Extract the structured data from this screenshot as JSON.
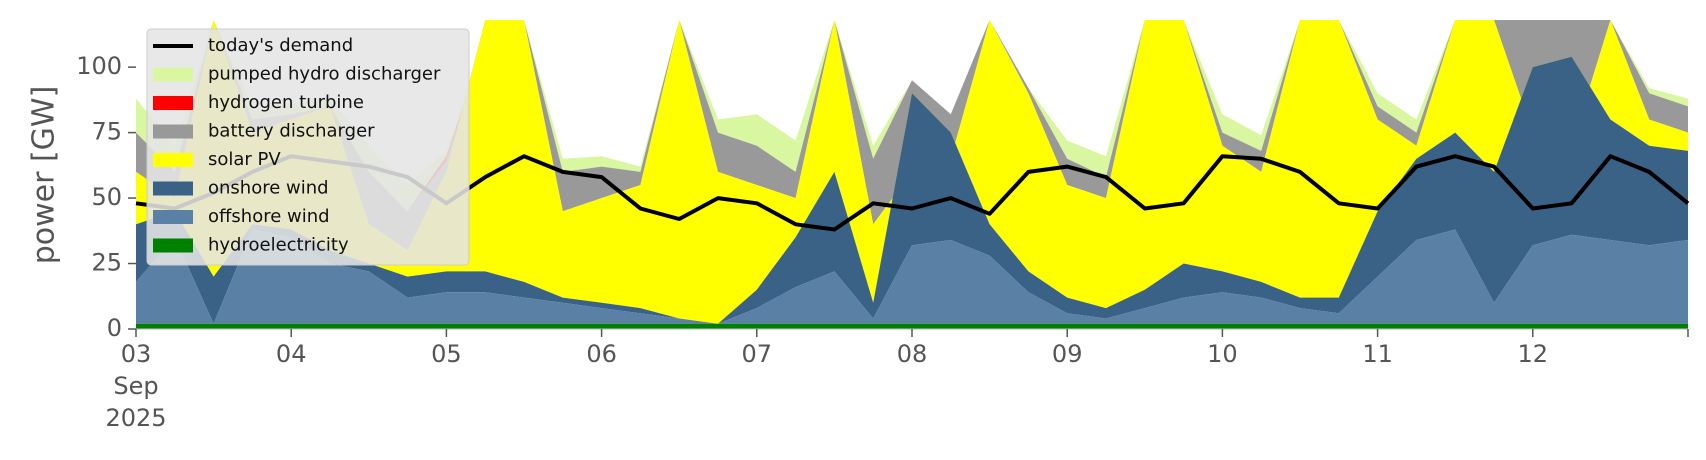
{
  "chart_data": {
    "type": "area",
    "ylabel": "power [GW]",
    "ylim": [
      0,
      118
    ],
    "xlim": [
      0,
      10
    ],
    "grid": false,
    "legend_position": "top-left",
    "y_ticks": [
      0,
      25,
      50,
      75,
      100
    ],
    "x_ticks": [
      {
        "day": 0,
        "label": "03",
        "sub": [
          "Sep",
          "2025"
        ]
      },
      {
        "day": 1,
        "label": "04",
        "sub": []
      },
      {
        "day": 2,
        "label": "05",
        "sub": []
      },
      {
        "day": 3,
        "label": "06",
        "sub": []
      },
      {
        "day": 4,
        "label": "07",
        "sub": []
      },
      {
        "day": 5,
        "label": "08",
        "sub": []
      },
      {
        "day": 6,
        "label": "09",
        "sub": []
      },
      {
        "day": 7,
        "label": "10",
        "sub": []
      },
      {
        "day": 8,
        "label": "11",
        "sub": []
      },
      {
        "day": 9,
        "label": "12",
        "sub": []
      }
    ],
    "x_values": [
      0,
      0.25,
      0.5,
      0.75,
      1,
      1.25,
      1.5,
      1.75,
      2,
      2.25,
      2.5,
      2.75,
      3,
      3.25,
      3.5,
      3.75,
      4,
      4.25,
      4.5,
      4.75,
      5,
      5.25,
      5.5,
      5.75,
      6,
      6.25,
      6.5,
      6.75,
      7,
      7.25,
      7.5,
      7.75,
      8,
      8.25,
      8.5,
      8.75,
      9,
      9.25,
      9.5,
      9.75,
      10
    ],
    "series": [
      {
        "name": "hydroelectricity",
        "color": "#008000",
        "values": [
          2,
          2,
          2,
          2,
          2,
          2,
          2,
          2,
          2,
          2,
          2,
          2,
          2,
          2,
          2,
          2,
          2,
          2,
          2,
          2,
          2,
          2,
          2,
          2,
          2,
          2,
          2,
          2,
          2,
          2,
          2,
          2,
          2,
          2,
          2,
          2,
          2,
          2,
          2,
          2,
          2
        ]
      },
      {
        "name": "offshore wind",
        "color": "#5b80a5",
        "values": [
          18,
          35,
          2,
          38,
          35,
          25,
          22,
          12,
          14,
          14,
          12,
          10,
          8,
          6,
          4,
          2,
          8,
          16,
          22,
          4,
          32,
          34,
          28,
          14,
          6,
          4,
          8,
          12,
          14,
          12,
          8,
          6,
          20,
          34,
          38,
          10,
          32,
          36,
          34,
          32,
          34
        ]
      },
      {
        "name": "onshore wind",
        "color": "#3a6286",
        "values": [
          40,
          45,
          20,
          40,
          38,
          30,
          25,
          20,
          22,
          22,
          18,
          12,
          10,
          8,
          4,
          2,
          15,
          35,
          60,
          10,
          90,
          75,
          40,
          22,
          12,
          8,
          15,
          25,
          22,
          18,
          12,
          12,
          45,
          65,
          75,
          60,
          100,
          104,
          80,
          70,
          68
        ]
      },
      {
        "name": "solar PV",
        "color": "#ffff00",
        "values": [
          60,
          50,
          118,
          75,
          80,
          85,
          40,
          30,
          60,
          118,
          118,
          45,
          50,
          55,
          118,
          60,
          55,
          50,
          118,
          40,
          60,
          65,
          118,
          90,
          55,
          50,
          118,
          118,
          70,
          60,
          118,
          118,
          80,
          70,
          118,
          118,
          75,
          70,
          118,
          80,
          75
        ]
      },
      {
        "name": "battery discharger",
        "color": "#999999",
        "values": [
          75,
          60,
          118,
          80,
          82,
          85,
          60,
          45,
          64,
          110,
          118,
          60,
          62,
          60,
          118,
          75,
          70,
          60,
          118,
          65,
          95,
          82,
          118,
          92,
          65,
          58,
          118,
          118,
          75,
          68,
          118,
          118,
          85,
          75,
          118,
          118,
          118,
          118,
          118,
          90,
          85
        ]
      },
      {
        "name": "hydrogen turbine",
        "color": "#ff0000",
        "values": [
          75,
          60,
          118,
          80,
          82,
          85,
          60,
          45,
          66,
          110,
          118,
          60,
          62,
          60,
          118,
          75,
          70,
          60,
          118,
          65,
          95,
          82,
          118,
          92,
          65,
          58,
          118,
          118,
          75,
          68,
          118,
          118,
          85,
          75,
          118,
          118,
          118,
          118,
          118,
          90,
          85
        ]
      },
      {
        "name": "pumped hydro discharger",
        "color": "#d9f7a0",
        "values": [
          88,
          70,
          118,
          85,
          86,
          88,
          70,
          55,
          68,
          110,
          118,
          65,
          66,
          62,
          118,
          80,
          82,
          72,
          118,
          70,
          95,
          82,
          118,
          92,
          72,
          66,
          118,
          118,
          82,
          74,
          118,
          118,
          90,
          80,
          118,
          118,
          118,
          118,
          118,
          92,
          88
        ]
      }
    ],
    "demand": {
      "name": "today's demand",
      "color": "#000000",
      "values": [
        48,
        46,
        52,
        60,
        66,
        64,
        62,
        58,
        48,
        58,
        66,
        60,
        58,
        46,
        42,
        50,
        48,
        40,
        38,
        48,
        46,
        50,
        44,
        60,
        62,
        58,
        46,
        48,
        66,
        65,
        60,
        48,
        46,
        62,
        66,
        62,
        46,
        48,
        66,
        60,
        48
      ]
    },
    "legend": [
      {
        "label": "today's demand",
        "color": "#000000",
        "kind": "line"
      },
      {
        "label": "pumped hydro discharger",
        "color": "#d9f7a0",
        "kind": "patch"
      },
      {
        "label": "hydrogen turbine",
        "color": "#ff0000",
        "kind": "patch"
      },
      {
        "label": "battery discharger",
        "color": "#999999",
        "kind": "patch"
      },
      {
        "label": "solar PV",
        "color": "#ffff00",
        "kind": "patch"
      },
      {
        "label": "onshore wind",
        "color": "#3a6286",
        "kind": "patch"
      },
      {
        "label": "offshore wind",
        "color": "#5b80a5",
        "kind": "patch"
      },
      {
        "label": "hydroelectricity",
        "color": "#008000",
        "kind": "patch"
      }
    ]
  }
}
